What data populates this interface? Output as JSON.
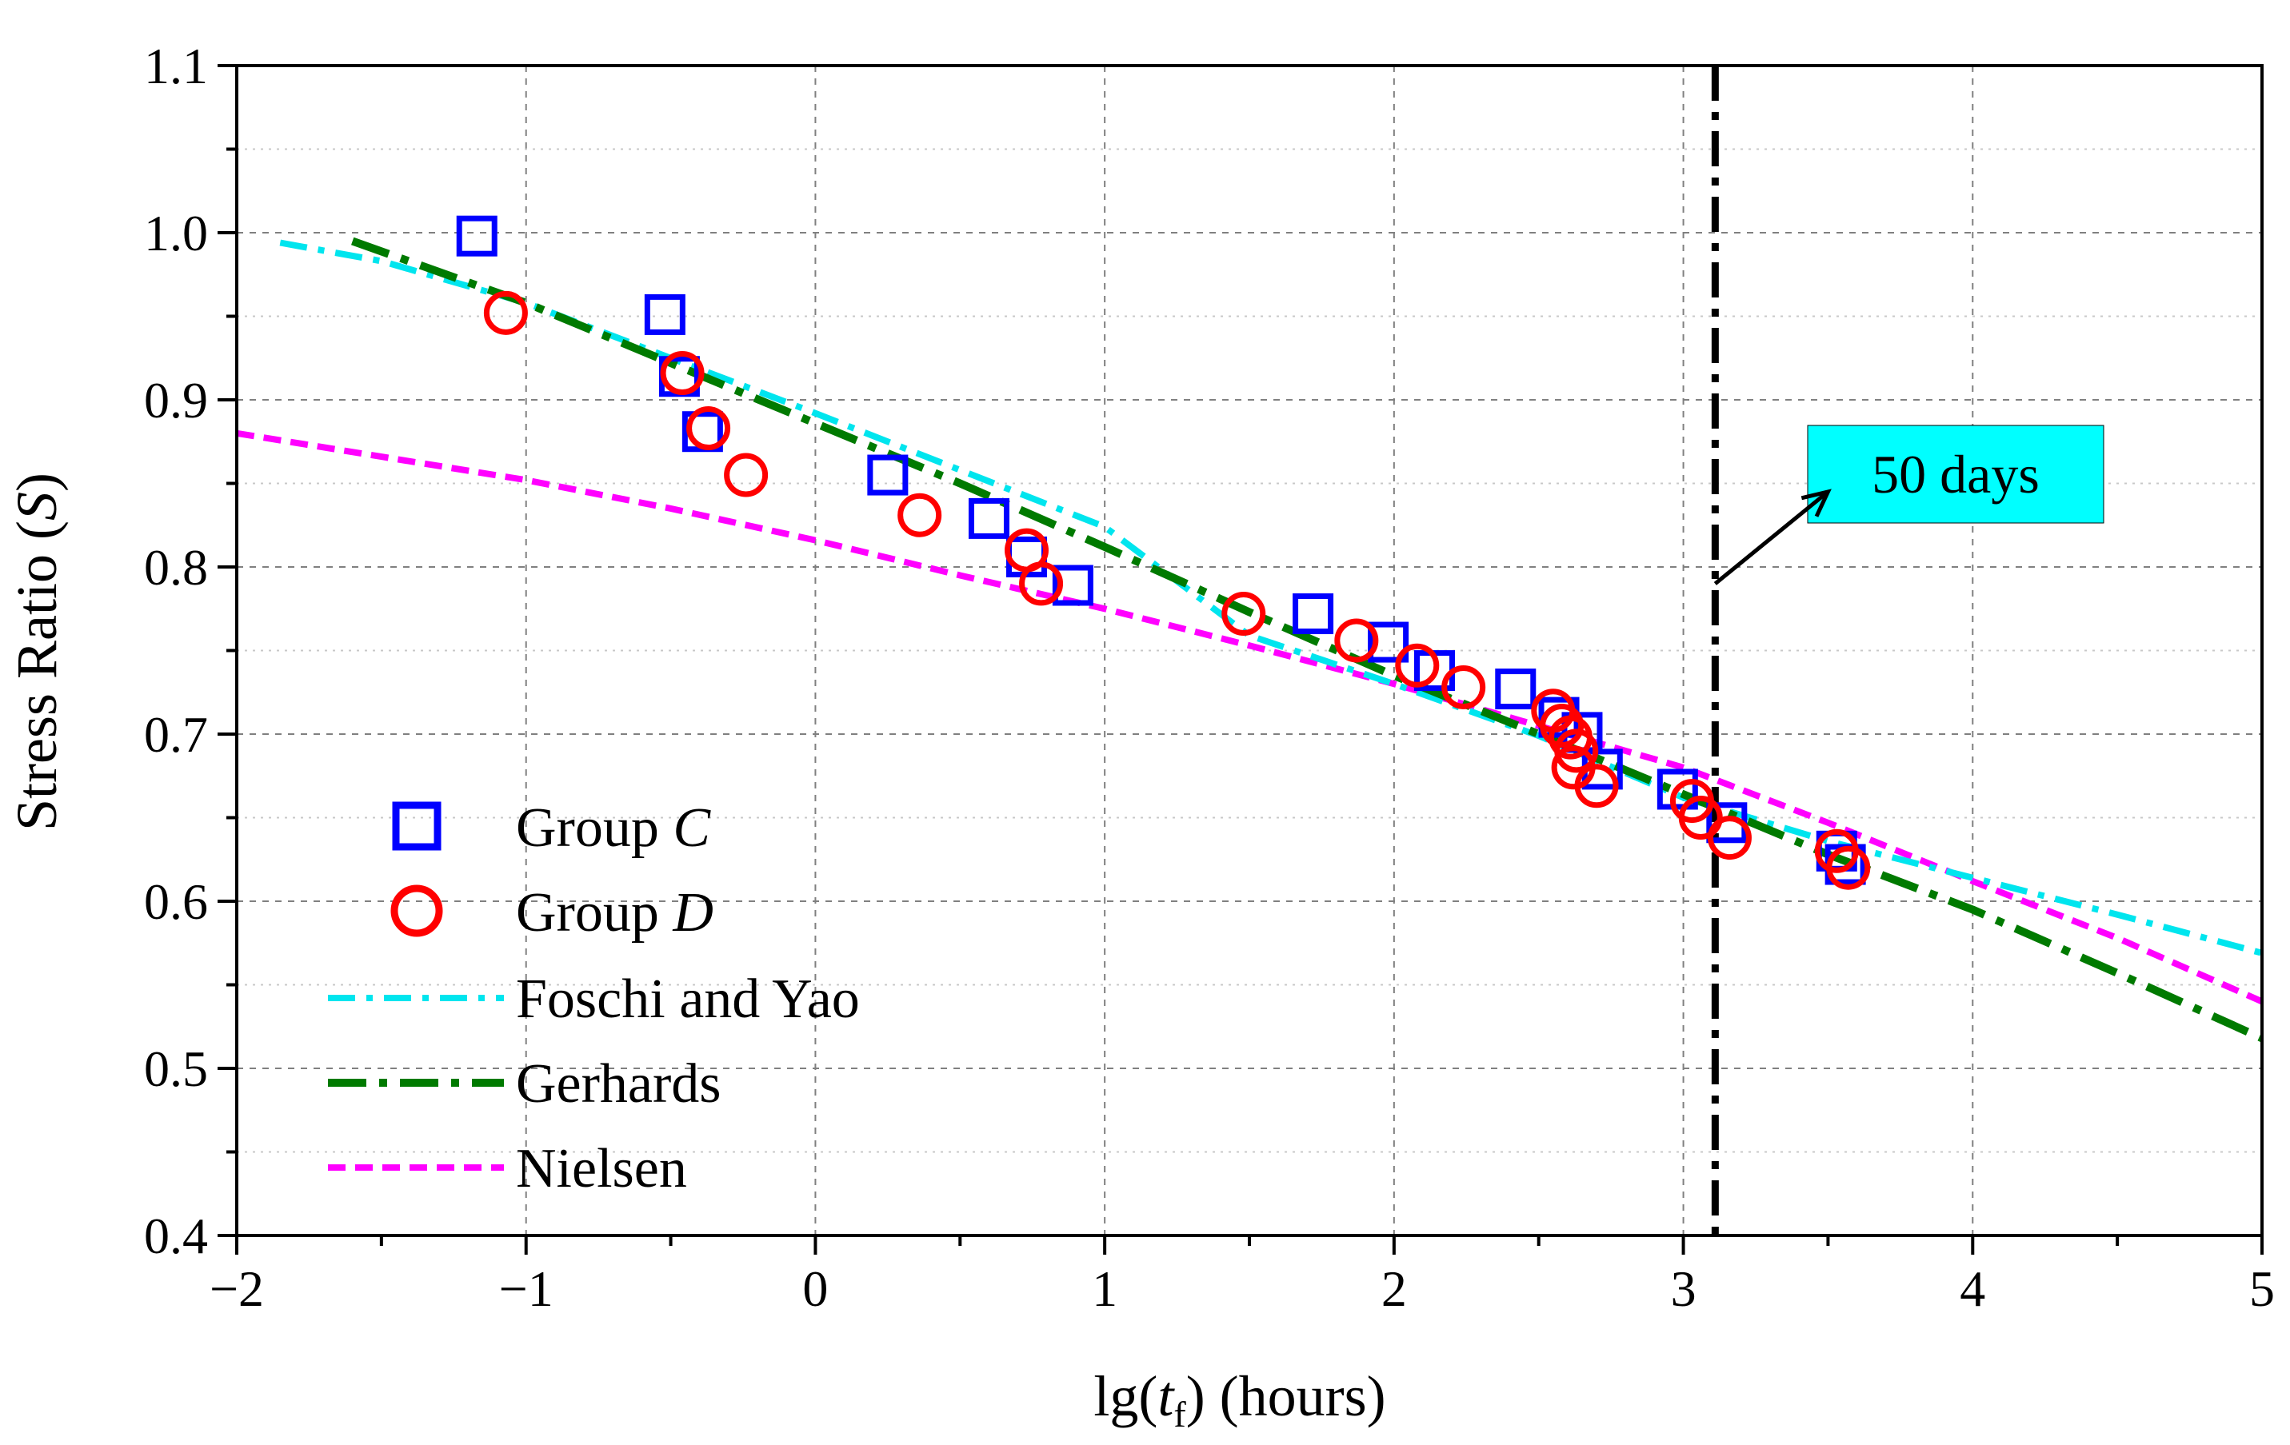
{
  "chart_data": {
    "type": "scatter",
    "xlabel": "lg(t_f)  (hours)",
    "xlabel_parts": {
      "pre": "lg(",
      "var": "t",
      "sub": "f",
      "post": ")  (hours)"
    },
    "ylabel": "Stress Ratio (S)",
    "ylabel_parts": {
      "pre": "Stress Ratio (",
      "var": "S",
      "post": ")"
    },
    "xlim": [
      -2,
      5
    ],
    "ylim": [
      0.4,
      1.1
    ],
    "x_ticks": [
      -2,
      -1,
      0,
      1,
      2,
      3,
      4,
      5
    ],
    "x_tick_labels": [
      "−2",
      "−1",
      "0",
      "1",
      "2",
      "3",
      "4",
      "5"
    ],
    "y_ticks": [
      0.4,
      0.5,
      0.6,
      0.7,
      0.8,
      0.9,
      1.0,
      1.1
    ],
    "y_tick_labels": [
      "0.4",
      "0.5",
      "0.6",
      "0.7",
      "0.8",
      "0.9",
      "1.0",
      "1.1"
    ],
    "grid": true,
    "legend_position": "bottom-left",
    "series": [
      {
        "name": "Group C",
        "legend_parts": {
          "pre": "Group ",
          "var": "C"
        },
        "kind": "marker-square",
        "color": "#0000ff",
        "x": [
          -1.17,
          -0.52,
          -0.47,
          -0.39,
          0.25,
          0.6,
          0.73,
          0.89,
          1.72,
          1.98,
          2.14,
          2.42,
          2.57,
          2.65,
          2.72,
          2.98,
          3.15,
          3.53,
          3.56
        ],
        "y": [
          0.998,
          0.951,
          0.914,
          0.881,
          0.855,
          0.829,
          0.806,
          0.789,
          0.772,
          0.755,
          0.738,
          0.727,
          0.71,
          0.701,
          0.679,
          0.667,
          0.647,
          0.63,
          0.622
        ]
      },
      {
        "name": "Group D",
        "legend_parts": {
          "pre": "Group ",
          "var": "D"
        },
        "kind": "marker-circle",
        "color": "#ff0000",
        "x": [
          -1.07,
          -0.46,
          -0.37,
          -0.24,
          0.36,
          0.73,
          0.78,
          1.48,
          1.87,
          2.08,
          2.24,
          2.55,
          2.58,
          2.61,
          2.63,
          2.62,
          2.7,
          3.03,
          3.06,
          3.16,
          3.53,
          3.57
        ],
        "y": [
          0.952,
          0.916,
          0.883,
          0.855,
          0.831,
          0.81,
          0.79,
          0.772,
          0.756,
          0.741,
          0.728,
          0.714,
          0.705,
          0.698,
          0.69,
          0.68,
          0.669,
          0.66,
          0.65,
          0.638,
          0.63,
          0.62
        ]
      },
      {
        "name": "Foschi and Yao",
        "kind": "line",
        "dash": "dash-dot",
        "color": "#00e5ee",
        "x": [
          -1.85,
          -1.5,
          -1.0,
          -0.5,
          0.0,
          0.5,
          1.0,
          1.5,
          2.0,
          2.5,
          3.0,
          3.5,
          4.0,
          4.5,
          5.0
        ],
        "y": [
          0.994,
          0.983,
          0.958,
          0.925,
          0.892,
          0.858,
          0.824,
          0.759,
          0.73,
          0.699,
          0.662,
          0.636,
          0.614,
          0.592,
          0.569
        ]
      },
      {
        "name": "Gerhards",
        "kind": "line",
        "dash": "dash-dot",
        "color": "#007a00",
        "x": [
          -1.6,
          -1.0,
          -0.5,
          0.0,
          0.5,
          1.0,
          1.5,
          2.0,
          2.5,
          3.0,
          3.5,
          4.0,
          4.5,
          5.0
        ],
        "y": [
          0.995,
          0.958,
          0.922,
          0.886,
          0.85,
          0.812,
          0.773,
          0.735,
          0.7,
          0.664,
          0.628,
          0.595,
          0.557,
          0.518
        ]
      },
      {
        "name": "Nielsen",
        "kind": "line",
        "dash": "dash",
        "color": "#ff00ff",
        "x": [
          -2.0,
          -1.5,
          -1.0,
          -0.5,
          0.0,
          0.5,
          1.0,
          1.5,
          2.0,
          2.5,
          3.0,
          3.5,
          4.0,
          4.5,
          5.0
        ],
        "y": [
          0.88,
          0.866,
          0.852,
          0.835,
          0.816,
          0.795,
          0.775,
          0.753,
          0.73,
          0.705,
          0.68,
          0.647,
          0.612,
          0.578,
          0.54
        ]
      }
    ],
    "reference_line": {
      "x": 3.11,
      "color": "#000000",
      "style": "dash-dot"
    },
    "annotation": {
      "text": "50 days",
      "box_color": "#00ffff",
      "arrow_from": [
        3.11,
        0.79
      ],
      "arrow_to": [
        3.5,
        0.845
      ]
    }
  }
}
